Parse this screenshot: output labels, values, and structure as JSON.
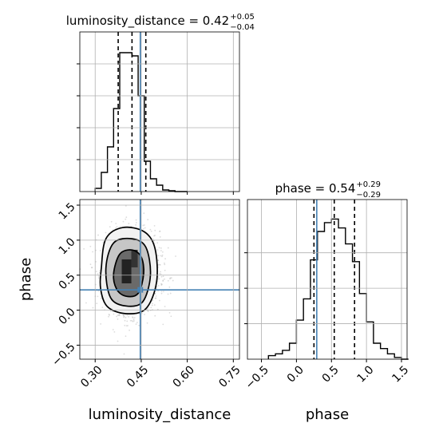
{
  "chart_data": {
    "type": "corner",
    "truth": {
      "luminosity_distance": 0.447,
      "phase": 0.29
    },
    "colors": {
      "histogram": "#000000",
      "truth": "#4682b4",
      "grid": "#b0b0b0",
      "points": "#9a9a9a"
    },
    "grid": true,
    "panels": [
      {
        "name": "luminosity_distance",
        "kind": "hist1d",
        "title": {
          "prefix": "luminosity_distance = 0.42",
          "sup": "+0.05",
          "sub": "−0.04"
        },
        "xlim": [
          0.25,
          0.77
        ],
        "ylim": [
          0,
          1.0
        ],
        "bins": [
          0.3,
          0.32,
          0.34,
          0.36,
          0.38,
          0.4,
          0.42,
          0.44,
          0.46,
          0.48,
          0.5,
          0.52,
          0.54,
          0.56,
          0.58,
          0.6
        ],
        "values": [
          0.02,
          0.12,
          0.28,
          0.52,
          0.87,
          0.87,
          0.85,
          0.6,
          0.19,
          0.08,
          0.04,
          0.01,
          0.005,
          0.0,
          0.0
        ],
        "quantiles": [
          0.375,
          0.42,
          0.465
        ],
        "xticks": [
          0.3,
          0.45,
          0.6,
          0.75
        ],
        "xtick_labels": [
          "0.30",
          "0.45",
          "0.60",
          "0.75"
        ],
        "yticks": [
          0.2,
          0.4,
          0.6,
          0.8
        ]
      },
      {
        "name": "phase",
        "kind": "hist1d",
        "title": {
          "prefix": "phase = 0.54",
          "sup": "+0.29",
          "sub": "−0.29"
        },
        "xlim": [
          -0.7,
          1.58
        ],
        "ylim": [
          0,
          0.9
        ],
        "bins": [
          -0.4,
          -0.3,
          -0.2,
          -0.1,
          0.0,
          0.1,
          0.2,
          0.3,
          0.4,
          0.5,
          0.6,
          0.7,
          0.8,
          0.9,
          1.0,
          1.1,
          1.2,
          1.3,
          1.4,
          1.5,
          1.6
        ],
        "values": [
          0.02,
          0.03,
          0.05,
          0.09,
          0.22,
          0.34,
          0.56,
          0.72,
          0.77,
          0.79,
          0.74,
          0.65,
          0.55,
          0.37,
          0.21,
          0.09,
          0.06,
          0.03,
          0.01,
          0.0
        ],
        "quantiles": [
          0.25,
          0.54,
          0.83
        ],
        "xticks": [
          -0.5,
          0.0,
          0.5,
          1.0,
          1.5
        ],
        "xtick_labels": [
          "−0.5",
          "0.0",
          "0.5",
          "1.0",
          "1.5"
        ],
        "yticks": [
          0.2,
          0.4,
          0.6
        ]
      },
      {
        "name": "luminosity_distance-vs-phase",
        "kind": "hist2d",
        "x": "luminosity_distance",
        "y": "phase",
        "xlim": [
          0.25,
          0.77
        ],
        "ylim": [
          -0.7,
          1.58
        ],
        "center": [
          0.42,
          0.54
        ],
        "std": [
          0.045,
          0.29
        ],
        "contours": [
          {
            "level": 0.5,
            "points": [
              [
                0.36,
                0.52
              ],
              [
                0.38,
                0.8
              ],
              [
                0.42,
                0.86
              ],
              [
                0.45,
                0.76
              ],
              [
                0.458,
                0.52
              ],
              [
                0.44,
                0.24
              ],
              [
                0.4,
                0.2
              ],
              [
                0.37,
                0.3
              ]
            ]
          },
          {
            "level": 1.0,
            "points": [
              [
                0.335,
                0.6
              ],
              [
                0.36,
                0.96
              ],
              [
                0.42,
                1.02
              ],
              [
                0.465,
                0.9
              ],
              [
                0.48,
                0.5
              ],
              [
                0.455,
                0.12
              ],
              [
                0.4,
                0.06
              ],
              [
                0.35,
                0.18
              ]
            ]
          },
          {
            "level": 1.5,
            "points": [
              [
                0.32,
                0.6
              ],
              [
                0.335,
                1.02
              ],
              [
                0.39,
                1.18
              ],
              [
                0.46,
                1.12
              ],
              [
                0.495,
                0.88
              ],
              [
                0.5,
                0.4
              ],
              [
                0.465,
                0.02
              ],
              [
                0.4,
                -0.05
              ],
              [
                0.34,
                0.05
              ],
              [
                0.318,
                0.3
              ]
            ]
          }
        ],
        "xticks": [
          0.3,
          0.45,
          0.6,
          0.75
        ],
        "xtick_labels": [
          "0.30",
          "0.45",
          "0.60",
          "0.75"
        ],
        "yticks": [
          -0.5,
          0.0,
          0.5,
          1.0,
          1.5
        ],
        "ytick_labels": [
          "−0.5",
          "0.0",
          "0.5",
          "1.0",
          "1.5"
        ]
      }
    ],
    "labels": {
      "x_bottom_left": "luminosity_distance",
      "x_bottom_right": "phase",
      "y_left": "phase"
    }
  }
}
